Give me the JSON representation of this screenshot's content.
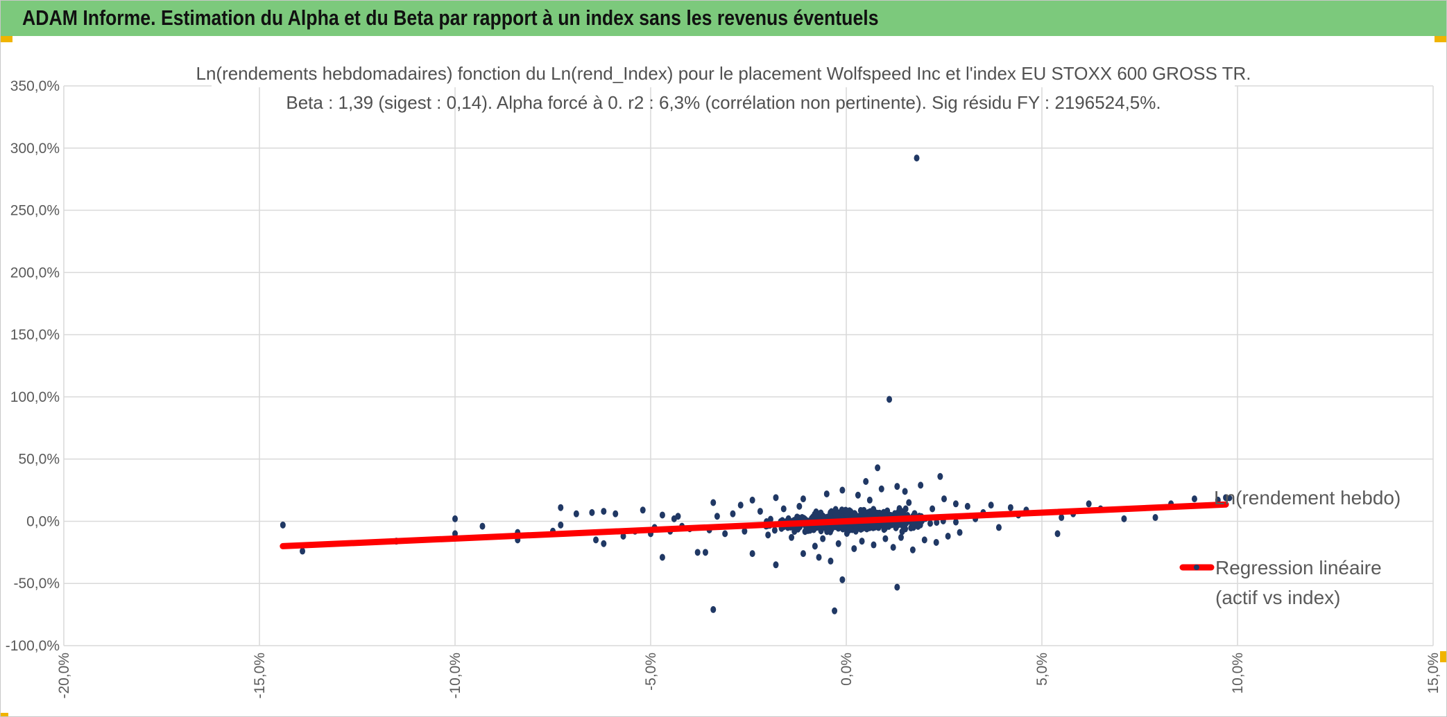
{
  "banner": {
    "title": "ADAM Informe. Estimation du Alpha et du Beta par rapport à un index sans les revenus éventuels",
    "color": "#7cc97c"
  },
  "chart_data": {
    "type": "scatter",
    "title": "Ln(rendements hebdomadaires) fonction du Ln(rend_Index) pour le placement Wolfspeed Inc et l'index EU STOXX 600 GROSS TR.",
    "subtitle": "Beta : 1,39 (sigest : 0,14). Alpha forcé à 0. r2 : 6,3% (corrélation non pertinente). Sig résidu FY : 2196524,5%.",
    "xlabel": "",
    "ylabel": "",
    "xlim": [
      -0.2,
      0.15
    ],
    "ylim": [
      -1.0,
      3.5
    ],
    "x_ticks": [
      -0.2,
      -0.15,
      -0.1,
      -0.05,
      0.0,
      0.05,
      0.1,
      0.15
    ],
    "y_ticks": [
      -1.0,
      -0.5,
      0.0,
      0.5,
      1.0,
      1.5,
      2.0,
      2.5,
      3.0,
      3.5
    ],
    "x_tick_labels": [
      "-20,0%",
      "-15,0%",
      "-10,0%",
      "-5,0%",
      "0,0%",
      "5,0%",
      "10,0%",
      "15,0%"
    ],
    "y_tick_labels": [
      "-100,0%",
      "-50,0%",
      "0,0%",
      "50,0%",
      "100,0%",
      "150,0%",
      "200,0%",
      "250,0%",
      "300,0%",
      "350,0%"
    ],
    "grid": true,
    "legend_position": "right",
    "series": [
      {
        "name": "Ln(rendement hebdo)",
        "kind": "scatter",
        "color": "#203864",
        "points": [
          [
            0.018,
            2.92
          ],
          [
            0.011,
            0.98
          ],
          [
            0.008,
            0.43
          ],
          [
            0.024,
            0.36
          ],
          [
            -0.001,
            0.25
          ],
          [
            0.005,
            0.32
          ],
          [
            0.013,
            0.28
          ],
          [
            0.019,
            0.29
          ],
          [
            -0.005,
            0.22
          ],
          [
            0.003,
            0.21
          ],
          [
            0.015,
            0.24
          ],
          [
            0.009,
            0.26
          ],
          [
            -0.011,
            0.18
          ],
          [
            -0.018,
            0.19
          ],
          [
            -0.024,
            0.17
          ],
          [
            -0.034,
            0.15
          ],
          [
            -0.027,
            0.13
          ],
          [
            -0.073,
            0.11
          ],
          [
            -0.052,
            0.09
          ],
          [
            -0.065,
            0.07
          ],
          [
            -0.062,
            0.08
          ],
          [
            -0.069,
            0.06
          ],
          [
            -0.059,
            0.06
          ],
          [
            -0.047,
            0.05
          ],
          [
            -0.043,
            0.04
          ],
          [
            -0.001,
            -0.47
          ],
          [
            0.013,
            -0.53
          ],
          [
            -0.003,
            -0.72
          ],
          [
            -0.034,
            -0.71
          ],
          [
            -0.024,
            -0.26
          ],
          [
            -0.018,
            -0.35
          ],
          [
            -0.007,
            -0.29
          ],
          [
            -0.011,
            -0.26
          ],
          [
            -0.004,
            -0.32
          ],
          [
            -0.047,
            -0.29
          ],
          [
            -0.038,
            -0.25
          ],
          [
            -0.036,
            -0.25
          ],
          [
            -0.144,
            -0.03
          ],
          [
            -0.139,
            -0.24
          ],
          [
            -0.1,
            -0.1
          ],
          [
            -0.1,
            0.02
          ],
          [
            -0.093,
            -0.04
          ],
          [
            -0.084,
            -0.09
          ],
          [
            -0.084,
            -0.15
          ],
          [
            -0.115,
            -0.16
          ],
          [
            -0.075,
            -0.08
          ],
          [
            -0.073,
            -0.03
          ],
          [
            -0.064,
            -0.15
          ],
          [
            -0.062,
            -0.18
          ],
          [
            -0.057,
            -0.12
          ],
          [
            -0.054,
            -0.08
          ],
          [
            -0.05,
            -0.1
          ],
          [
            -0.049,
            -0.05
          ],
          [
            -0.045,
            -0.08
          ],
          [
            -0.04,
            -0.06
          ],
          [
            0.054,
            -0.1
          ],
          [
            0.055,
            0.03
          ],
          [
            0.058,
            0.06
          ],
          [
            0.062,
            0.14
          ],
          [
            0.065,
            0.1
          ],
          [
            0.071,
            0.02
          ],
          [
            0.079,
            0.03
          ],
          [
            0.083,
            0.14
          ],
          [
            0.089,
            0.18
          ],
          [
            0.095,
            0.17
          ],
          [
            0.097,
            0.19
          ],
          [
            0.046,
            0.09
          ],
          [
            0.044,
            0.05
          ],
          [
            0.042,
            0.11
          ],
          [
            0.039,
            -0.05
          ],
          [
            0.037,
            0.13
          ],
          [
            0.035,
            0.07
          ],
          [
            0.033,
            0.02
          ],
          [
            0.031,
            0.12
          ],
          [
            0.029,
            -0.09
          ],
          [
            0.028,
            0.14
          ],
          [
            0.026,
            -0.12
          ],
          [
            0.025,
            0.18
          ],
          [
            0.023,
            -0.17
          ],
          [
            0.022,
            0.1
          ],
          [
            0.02,
            -0.15
          ],
          [
            0.017,
            -0.23
          ],
          [
            0.016,
            0.15
          ],
          [
            0.014,
            -0.13
          ],
          [
            0.012,
            -0.21
          ],
          [
            0.01,
            -0.14
          ],
          [
            0.007,
            -0.19
          ],
          [
            0.006,
            0.17
          ],
          [
            0.004,
            -0.16
          ],
          [
            0.002,
            -0.22
          ],
          [
            -0.002,
            -0.18
          ],
          [
            -0.006,
            -0.14
          ],
          [
            -0.008,
            -0.2
          ],
          [
            -0.012,
            0.12
          ],
          [
            -0.014,
            -0.13
          ],
          [
            -0.016,
            0.1
          ],
          [
            -0.02,
            -0.11
          ],
          [
            -0.022,
            0.08
          ],
          [
            -0.026,
            -0.08
          ],
          [
            -0.029,
            0.06
          ],
          [
            -0.031,
            -0.1
          ],
          [
            -0.033,
            0.04
          ],
          [
            -0.035,
            -0.07
          ],
          [
            -0.042,
            -0.04
          ],
          [
            -0.044,
            0.02
          ]
        ]
      },
      {
        "name": "Regression linéaire (actif vs index)",
        "legend_line1": "Regression linéaire",
        "legend_line2": "(actif vs index)",
        "kind": "line",
        "color": "#ff0000",
        "beta": 1.39,
        "x_range": [
          -0.144,
          0.097
        ]
      }
    ]
  }
}
